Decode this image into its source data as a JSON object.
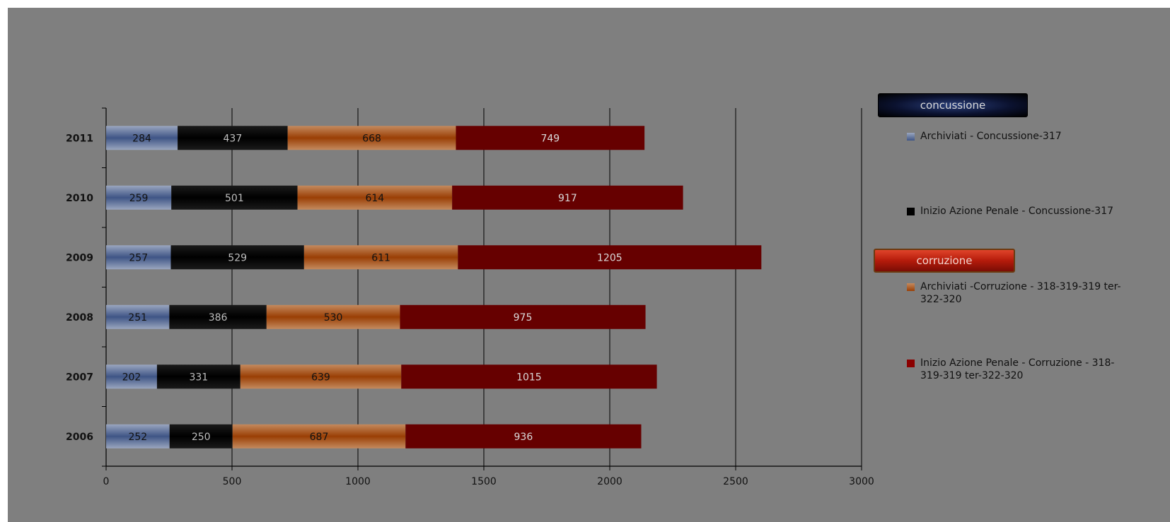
{
  "chart_data": {
    "type": "bar",
    "orientation": "horizontal",
    "stacked": true,
    "categories": [
      "2006",
      "2007",
      "2008",
      "2009",
      "2010",
      "2011"
    ],
    "series": [
      {
        "name": "Archiviati - Concussione-317",
        "values": [
          252,
          202,
          251,
          257,
          259,
          284
        ],
        "color": "#5a6f9a"
      },
      {
        "name": "Inizio Azione Penale - Concussione-317",
        "values": [
          250,
          331,
          386,
          529,
          501,
          437
        ],
        "color": "#000000"
      },
      {
        "name": "Archiviati -Corruzione - 318-319-319 ter-322-320",
        "values": [
          687,
          639,
          530,
          611,
          614,
          668
        ],
        "color": "#a0490f"
      },
      {
        "name": "Inizio Azione Penale - Corruzione - 318-319-319 ter-322-320",
        "values": [
          936,
          1015,
          975,
          1205,
          917,
          749
        ],
        "color": "#660000"
      }
    ],
    "xlim": [
      0,
      3000
    ],
    "xticks": [
      0,
      500,
      1000,
      1500,
      2000,
      2500,
      3000
    ],
    "grid": true,
    "data_labels": true,
    "legend_position": "right",
    "legend_groups": [
      "concussione",
      "corruzione"
    ]
  }
}
